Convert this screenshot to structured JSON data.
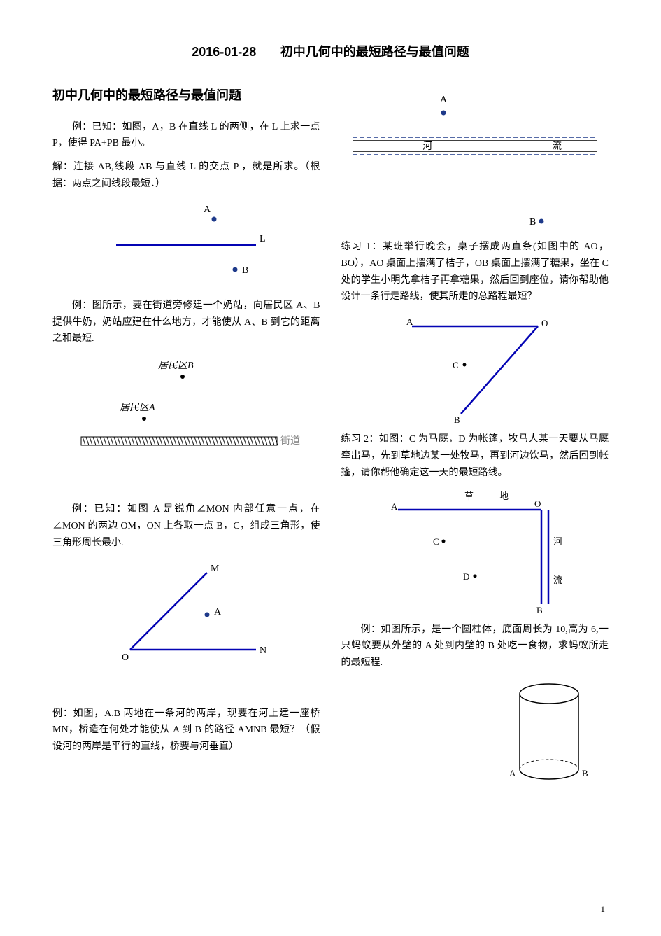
{
  "header": {
    "date": "2016-01-28",
    "title": "初中几何中的最短路径与最值问题"
  },
  "left": {
    "section_title": "初中几何中的最短路径与最值问题",
    "p1": "例：已知：如图，A，B 在直线 L 的两侧，在 L 上求一点 P，使得 PA+PB 最小。",
    "p2": "解：连接 AB,线段 AB 与直线 L 的交点 P ，就是所求。（根据：两点之间线段最短．）",
    "p3": "例：图所示，要在街道旁修建一个奶站，向居民区 A、B 提供牛奶，奶站应建在什么地方，才能使从 A、B 到它的距离之和最短.",
    "p4": "例：已知：如图 A 是锐角∠MON 内部任意一点，在∠MON 的两边 OM，ON 上各取一点 B，C，组成三角形，使三角形周长最小.",
    "p5": "例：如图，A.B 两地在一条河的两岸，现要在河上建一座桥 MN，桥造在何处才能使从 A 到 B 的路径 AMNB 最短？（假设河的两岸是平行的直线，桥要与河垂直）"
  },
  "right": {
    "p1": "练习 1：某班举行晚会，桌子摆成两直条(如图中的 AO，BO），AO 桌面上摆满了桔子，OB 桌面上摆满了糖果，坐在 C 处的学生小明先拿桔子再拿糖果，然后回到座位，请你帮助他设计一条行走路线，使其所走的总路程最短？",
    "p2": "练习 2：如图：C 为马厩，D 为帐篷，牧马人某一天要从马厩牵出马，先到草地边某一处牧马，再到河边饮马，然后回到帐篷，请你帮他确定这一天的最短路线。",
    "p3": "例：如图所示，是一个圆柱体，底面周长为 10,高为 6,一只蚂蚁要从外壁的 A 处到内壁的 B 处吃一食物，求蚂蚁所走的最短程."
  },
  "fig1": {
    "A": "A",
    "B": "B",
    "L": "L",
    "dot_color": "#1e3a8a",
    "line_color": "#0404b4"
  },
  "fig2": {
    "labelB": "居民区B",
    "labelA": "居民区A",
    "street": "街道",
    "dot_color": "#000000",
    "hatch_color": "#444444"
  },
  "fig3": {
    "M": "M",
    "N": "N",
    "O": "O",
    "A": "A",
    "line_color": "#0404b4",
    "dot_color": "#1e3a8a"
  },
  "fig4": {
    "A": "A",
    "B": "B",
    "river": "河",
    "flow": "流",
    "dot_color": "#1e3a8a",
    "dash_color": "#1e3a8a"
  },
  "fig5": {
    "A": "A",
    "B": "B",
    "O": "O",
    "C": "C",
    "line_color": "#0404b4",
    "dot_color": "#000000"
  },
  "fig6": {
    "A": "A",
    "B": "B",
    "O": "O",
    "C": "C",
    "D": "D",
    "grass1": "草",
    "grass2": "地",
    "river1": "河",
    "river2": "流",
    "line_color": "#0404b4",
    "dot_color": "#000000"
  },
  "fig7": {
    "A": "A",
    "B": "B",
    "stroke": "#000000"
  },
  "page_number": "1"
}
